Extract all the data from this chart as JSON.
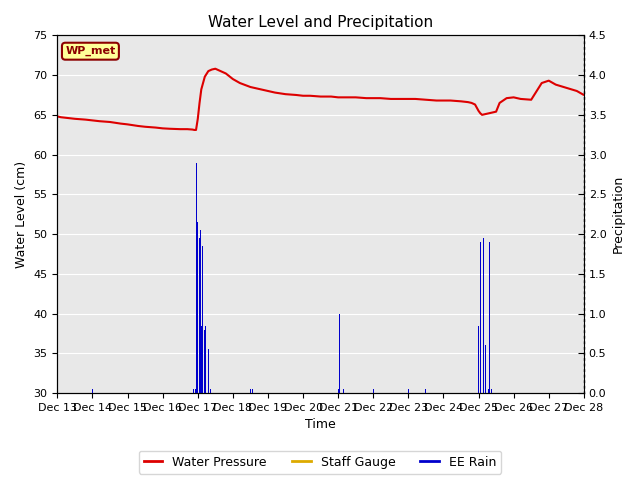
{
  "title": "Water Level and Precipitation",
  "xlabel": "Time",
  "ylabel_left": "Water Level (cm)",
  "ylabel_right": "Precipitation",
  "annotation": "WP_met",
  "ylim_left": [
    30,
    75
  ],
  "ylim_right": [
    0.0,
    4.5
  ],
  "figsize": [
    6.4,
    4.8
  ],
  "dpi": 100,
  "water_pressure_color": "#dd0000",
  "ee_rain_color": "#0000cc",
  "staff_gauge_color": "#ddaa00",
  "x_tick_labels": [
    "Dec 13",
    "Dec 14",
    "Dec 15",
    "Dec 16",
    "Dec 17",
    "Dec 18",
    "Dec 19",
    "Dec 20",
    "Dec 21",
    "Dec 22",
    "Dec 23",
    "Dec 24",
    "Dec 25",
    "Dec 26",
    "Dec 27",
    "Dec 28"
  ],
  "wp_x": [
    0,
    0.1,
    0.3,
    0.5,
    0.8,
    1.0,
    1.2,
    1.5,
    1.8,
    2.0,
    2.3,
    2.5,
    2.8,
    3.0,
    3.2,
    3.5,
    3.7,
    3.85,
    3.9,
    3.95,
    4.0,
    4.05,
    4.1,
    4.2,
    4.3,
    4.4,
    4.5,
    4.6,
    4.8,
    5.0,
    5.2,
    5.5,
    5.8,
    6.0,
    6.2,
    6.5,
    6.8,
    7.0,
    7.2,
    7.5,
    7.8,
    8.0,
    8.2,
    8.5,
    8.8,
    9.0,
    9.2,
    9.5,
    9.8,
    10.0,
    10.2,
    10.5,
    10.8,
    11.0,
    11.2,
    11.5,
    11.7,
    11.8,
    11.9,
    12.0,
    12.05,
    12.1,
    12.2,
    12.3,
    12.4,
    12.5,
    12.6,
    12.8,
    13.0,
    13.2,
    13.5,
    13.8,
    14.0,
    14.2,
    14.5,
    14.8,
    15.0
  ],
  "wp_y": [
    64.8,
    64.7,
    64.6,
    64.5,
    64.4,
    64.3,
    64.2,
    64.1,
    63.9,
    63.8,
    63.6,
    63.5,
    63.4,
    63.3,
    63.25,
    63.2,
    63.2,
    63.15,
    63.1,
    63.1,
    64.5,
    66.5,
    68.2,
    69.8,
    70.5,
    70.7,
    70.8,
    70.6,
    70.2,
    69.5,
    69.0,
    68.5,
    68.2,
    68.0,
    67.8,
    67.6,
    67.5,
    67.4,
    67.4,
    67.3,
    67.3,
    67.2,
    67.2,
    67.2,
    67.1,
    67.1,
    67.1,
    67.0,
    67.0,
    67.0,
    67.0,
    66.9,
    66.8,
    66.8,
    66.8,
    66.7,
    66.6,
    66.5,
    66.3,
    65.5,
    65.2,
    65.0,
    65.1,
    65.2,
    65.3,
    65.4,
    66.5,
    67.1,
    67.2,
    67.0,
    66.9,
    69.0,
    69.3,
    68.8,
    68.4,
    68.0,
    67.5
  ],
  "rain_events": [
    {
      "day": 1.0,
      "amount": 0.05
    },
    {
      "day": 3.88,
      "amount": 0.05
    },
    {
      "day": 3.93,
      "amount": 0.05
    },
    {
      "day": 3.97,
      "amount": 2.9
    },
    {
      "day": 4.0,
      "amount": 2.15
    },
    {
      "day": 4.04,
      "amount": 1.95
    },
    {
      "day": 4.07,
      "amount": 2.05
    },
    {
      "day": 4.1,
      "amount": 0.85
    },
    {
      "day": 4.14,
      "amount": 1.85
    },
    {
      "day": 4.18,
      "amount": 0.8
    },
    {
      "day": 4.22,
      "amount": 0.85
    },
    {
      "day": 4.3,
      "amount": 0.55
    },
    {
      "day": 4.35,
      "amount": 0.05
    },
    {
      "day": 5.5,
      "amount": 0.05
    },
    {
      "day": 5.55,
      "amount": 0.05
    },
    {
      "day": 8.0,
      "amount": 0.05
    },
    {
      "day": 8.05,
      "amount": 1.0
    },
    {
      "day": 8.15,
      "amount": 0.05
    },
    {
      "day": 9.0,
      "amount": 0.05
    },
    {
      "day": 10.0,
      "amount": 0.05
    },
    {
      "day": 10.5,
      "amount": 0.05
    },
    {
      "day": 11.7,
      "amount": 0.05
    },
    {
      "day": 12.0,
      "amount": 0.85
    },
    {
      "day": 12.05,
      "amount": 1.9
    },
    {
      "day": 12.1,
      "amount": 1.85
    },
    {
      "day": 12.15,
      "amount": 1.95
    },
    {
      "day": 12.2,
      "amount": 0.6
    },
    {
      "day": 12.28,
      "amount": 0.05
    },
    {
      "day": 12.32,
      "amount": 1.9
    },
    {
      "day": 12.36,
      "amount": 0.05
    }
  ]
}
